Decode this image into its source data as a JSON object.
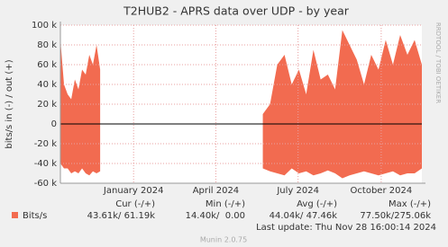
{
  "chart_data": {
    "type": "area",
    "title": "T2HUB2 - APRS data over UDP - by year",
    "ylabel": "bits/s in (-) / out (+)",
    "side_text": "RRDTOOL / TOBI OETIKER",
    "xlim": [
      0,
      400
    ],
    "xticks": [
      {
        "value": 81,
        "label": "January 2024"
      },
      {
        "value": 172,
        "label": "April 2024"
      },
      {
        "value": 263,
        "label": "July 2024"
      },
      {
        "value": 355,
        "label": "October 2024"
      }
    ],
    "ylim": [
      -60000,
      100000
    ],
    "yticks": [
      {
        "value": -60000,
        "label": "-60 k"
      },
      {
        "value": -40000,
        "label": "-40 k"
      },
      {
        "value": -20000,
        "label": "-20 k"
      },
      0,
      {
        "value": 20000,
        "label": "20 k"
      },
      {
        "value": 40000,
        "label": "40 k"
      },
      {
        "value": 60000,
        "label": "60 k"
      },
      {
        "value": 80000,
        "label": "80 k"
      },
      {
        "value": 100000,
        "label": "100 k"
      }
    ],
    "grid": true,
    "x": [
      0,
      4,
      8,
      12,
      16,
      20,
      24,
      28,
      32,
      36,
      40,
      44,
      130,
      224,
      232,
      240,
      248,
      256,
      264,
      272,
      280,
      288,
      296,
      304,
      312,
      320,
      328,
      336,
      344,
      352,
      360,
      368,
      376,
      384,
      392,
      400
    ],
    "series": [
      {
        "name": "out",
        "color": "#f26b50",
        "values": [
          85000,
          40000,
          30000,
          25000,
          45000,
          35000,
          55000,
          50000,
          70000,
          60000,
          80000,
          55000,
          null,
          10000,
          20000,
          60000,
          70000,
          40000,
          55000,
          30000,
          75000,
          45000,
          50000,
          35000,
          95000,
          80000,
          65000,
          40000,
          70000,
          55000,
          85000,
          60000,
          90000,
          70000,
          85000,
          60000
        ]
      },
      {
        "name": "in",
        "color": "#f26b50",
        "values": [
          -40000,
          -45000,
          -45000,
          -50000,
          -48000,
          -50000,
          -45000,
          -50000,
          -52000,
          -48000,
          -50000,
          -48000,
          null,
          -45000,
          -48000,
          -50000,
          -52000,
          -45000,
          -50000,
          -48000,
          -52000,
          -50000,
          -47000,
          -50000,
          -55000,
          -52000,
          -50000,
          -48000,
          -50000,
          -52000,
          -50000,
          -48000,
          -52000,
          -50000,
          -50000,
          -45000
        ]
      }
    ],
    "legend": {
      "name": "Bits/s",
      "color": "#f26b50",
      "headers": [
        "Cur (-/+)",
        "Min (-/+)",
        "Avg (-/+)",
        "Max (-/+)"
      ],
      "values": [
        "43.61k/ 61.19k",
        "14.40k/  0.00",
        "44.04k/ 47.46k",
        "77.50k/275.06k"
      ]
    },
    "last_update": "Last update: Thu Nov 28 16:00:14 2024",
    "footer": "Munin 2.0.75"
  }
}
